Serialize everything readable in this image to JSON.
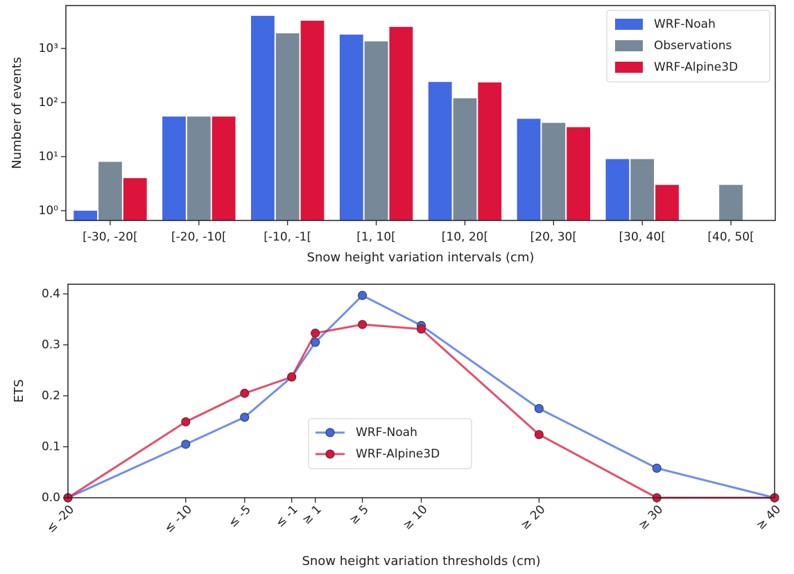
{
  "chart_data": [
    {
      "type": "bar",
      "xlabel": "Snow height variation intervals (cm)",
      "ylabel": "Number of events",
      "log_y": true,
      "ylim": [
        0.66,
        6200
      ],
      "yticks": [
        {
          "value": 1,
          "label": "10⁰"
        },
        {
          "value": 10,
          "label": "10¹"
        },
        {
          "value": 100,
          "label": "10²"
        },
        {
          "value": 1000,
          "label": "10³"
        }
      ],
      "categories": [
        "[-30, -20[",
        "[-20, -10[",
        "[-10, -1[",
        "[1, 10[",
        "[10, 20[",
        "[20, 30[",
        "[30, 40[",
        "[40, 50["
      ],
      "series": [
        {
          "name": "WRF-Noah",
          "color": "#4169e1",
          "values": [
            1,
            55,
            4000,
            1800,
            240,
            50,
            9,
            null
          ]
        },
        {
          "name": "Observations",
          "color": "#778899",
          "values": [
            8,
            55,
            1900,
            1350,
            120,
            42,
            9,
            3
          ]
        },
        {
          "name": "WRF-Alpine3D",
          "color": "#dc143c",
          "values": [
            4,
            55,
            3250,
            2500,
            235,
            35,
            3,
            null
          ]
        }
      ],
      "legend": "upper right"
    },
    {
      "type": "line",
      "xlabel": "Snow height variation thresholds (cm)",
      "ylabel": "ETS",
      "xlim": [
        -20,
        40
      ],
      "ylim": [
        0,
        0.419
      ],
      "x": [
        -20,
        -10,
        -5,
        -1,
        1,
        5,
        10,
        20,
        30,
        40
      ],
      "xticks": [
        {
          "value": -20,
          "label": "≤ -20"
        },
        {
          "value": -10,
          "label": "≤ -10"
        },
        {
          "value": -5,
          "label": "≤ -5"
        },
        {
          "value": -1,
          "label": "≤ -1"
        },
        {
          "value": 1,
          "label": "≥ 1"
        },
        {
          "value": 5,
          "label": "≥ 5"
        },
        {
          "value": 10,
          "label": "≥ 10"
        },
        {
          "value": 20,
          "label": "≥ 20"
        },
        {
          "value": 30,
          "label": "≥ 30"
        },
        {
          "value": 40,
          "label": "≥ 40"
        }
      ],
      "yticks": [
        {
          "value": 0,
          "label": "0.0"
        },
        0.1,
        0.2,
        0.3,
        0.4
      ],
      "series": [
        {
          "name": "WRF-Noah",
          "color": "#4169e1",
          "values": [
            0,
            0.105,
            0.158,
            0.237,
            0.305,
            0.397,
            0.338,
            0.175,
            0.058,
            0
          ]
        },
        {
          "name": "WRF-Alpine3D",
          "color": "#dc143c",
          "values": [
            0,
            0.149,
            0.205,
            0.237,
            0.323,
            0.34,
            0.331,
            0.124,
            0,
            0
          ]
        }
      ],
      "legend": "center"
    }
  ]
}
